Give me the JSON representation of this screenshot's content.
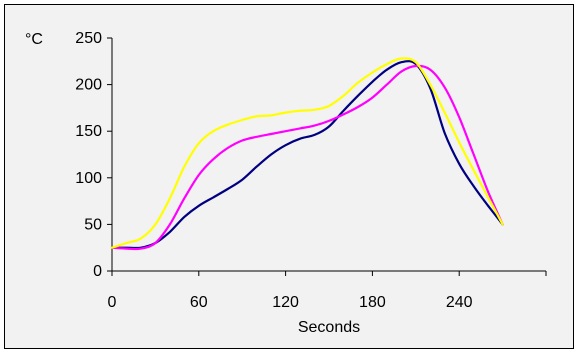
{
  "chart_data": {
    "type": "line",
    "title": "",
    "xlabel": "Seconds",
    "ylabel": "°C",
    "xlim": [
      0,
      300
    ],
    "ylim": [
      0,
      250
    ],
    "x_ticks": [
      0,
      60,
      120,
      180,
      240
    ],
    "y_ticks": [
      0,
      50,
      100,
      150,
      200,
      250
    ],
    "grid": false,
    "legend": "none",
    "series": [
      {
        "color": "#000080",
        "x": [
          0,
          10,
          20,
          30,
          40,
          50,
          60,
          70,
          80,
          90,
          100,
          110,
          120,
          130,
          140,
          150,
          160,
          170,
          180,
          190,
          200,
          210,
          220,
          230,
          240,
          250,
          260,
          270
        ],
        "y": [
          25,
          25,
          25,
          30,
          42,
          58,
          70,
          79,
          88,
          98,
          112,
          125,
          135,
          142,
          146,
          155,
          172,
          188,
          203,
          216,
          224,
          222,
          196,
          148,
          115,
          91,
          70,
          50
        ]
      },
      {
        "color": "#ff00ff",
        "x": [
          0,
          10,
          20,
          30,
          40,
          50,
          60,
          70,
          80,
          90,
          100,
          110,
          120,
          130,
          140,
          150,
          160,
          170,
          180,
          190,
          200,
          210,
          220,
          230,
          240,
          250,
          260,
          270
        ],
        "y": [
          25,
          24,
          24,
          30,
          50,
          78,
          103,
          120,
          132,
          140,
          144,
          147,
          150,
          153,
          156,
          161,
          168,
          176,
          186,
          200,
          214,
          220,
          216,
          197,
          165,
          125,
          85,
          50
        ]
      },
      {
        "color": "#ffff00",
        "x": [
          0,
          10,
          20,
          30,
          40,
          50,
          60,
          70,
          80,
          90,
          100,
          110,
          120,
          130,
          140,
          150,
          160,
          170,
          180,
          190,
          200,
          210,
          220,
          230,
          240,
          250,
          260,
          270
        ],
        "y": [
          25,
          30,
          35,
          50,
          78,
          112,
          137,
          150,
          157,
          162,
          166,
          167,
          170,
          172,
          173,
          177,
          188,
          202,
          213,
          222,
          228,
          224,
          200,
          170,
          138,
          108,
          79,
          50
        ]
      }
    ]
  }
}
